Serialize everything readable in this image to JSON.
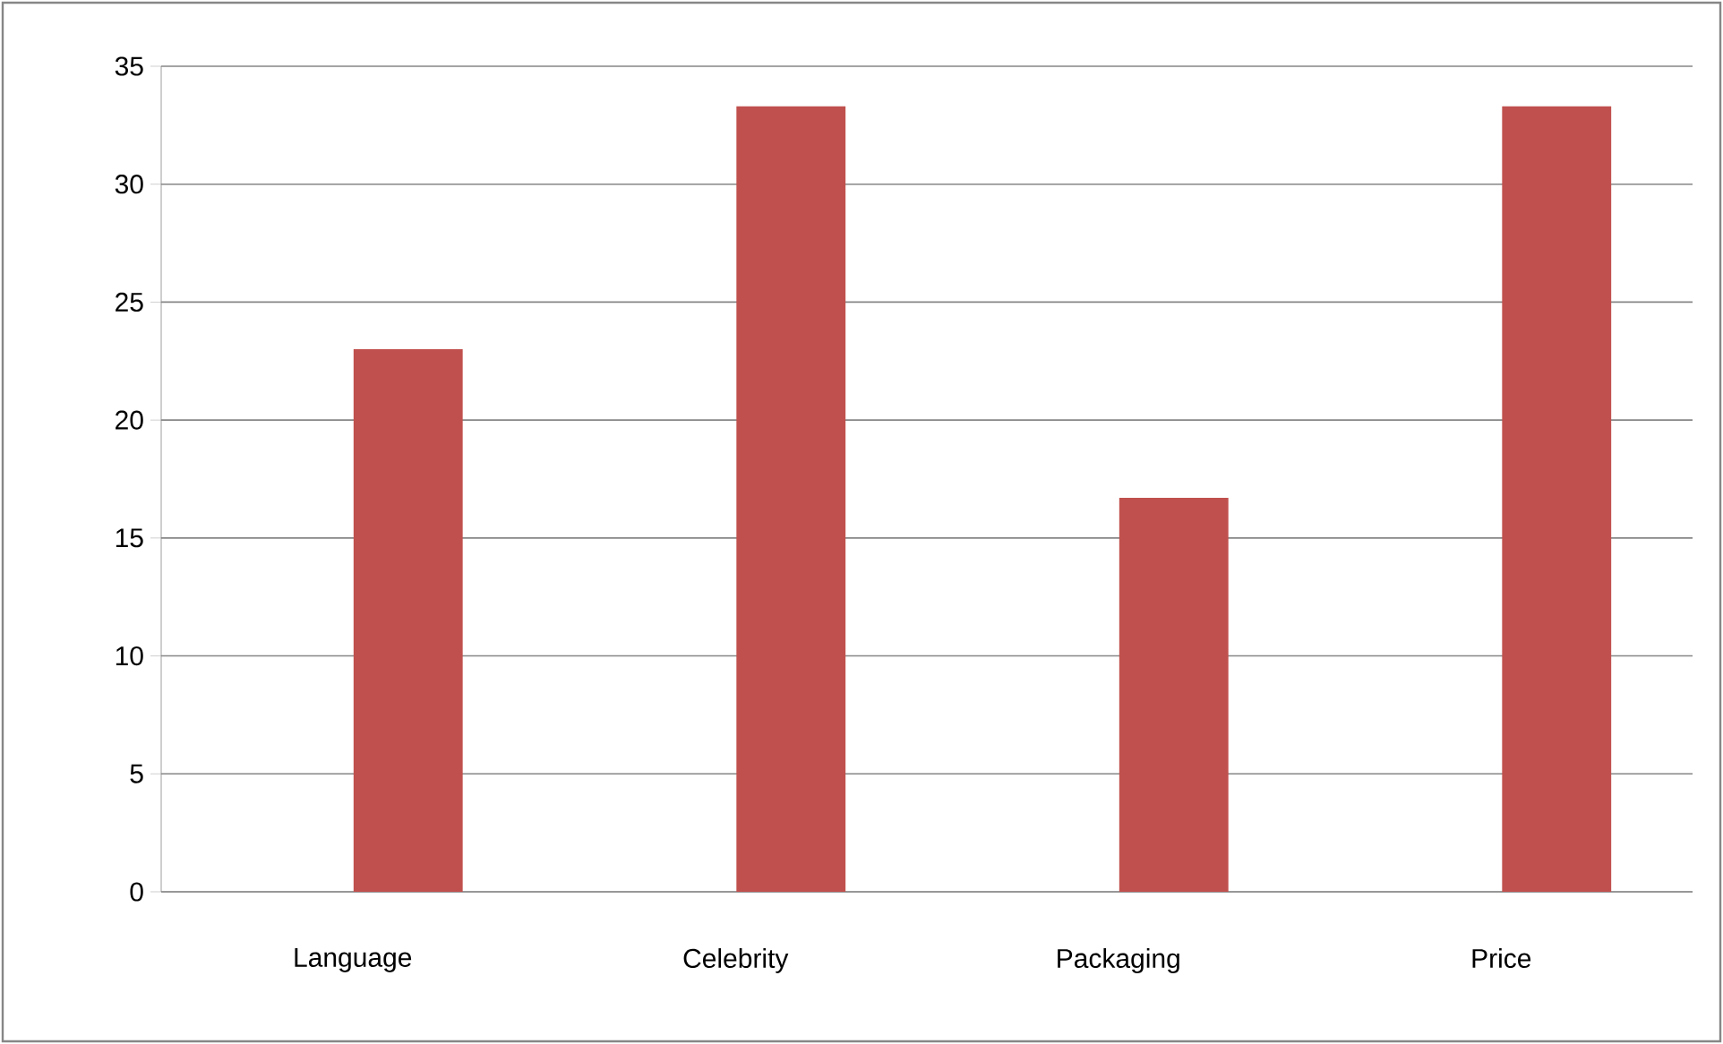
{
  "chart_data": {
    "type": "bar",
    "categories": [
      "Language",
      "Celebrity",
      "Packaging",
      "Price"
    ],
    "values": [
      23,
      33.3,
      16.7,
      33.3
    ],
    "color": "#c0504d",
    "ylim": [
      0,
      35
    ],
    "yticks": [
      0,
      5,
      10,
      15,
      20,
      25,
      30,
      35
    ],
    "grid": "y"
  }
}
